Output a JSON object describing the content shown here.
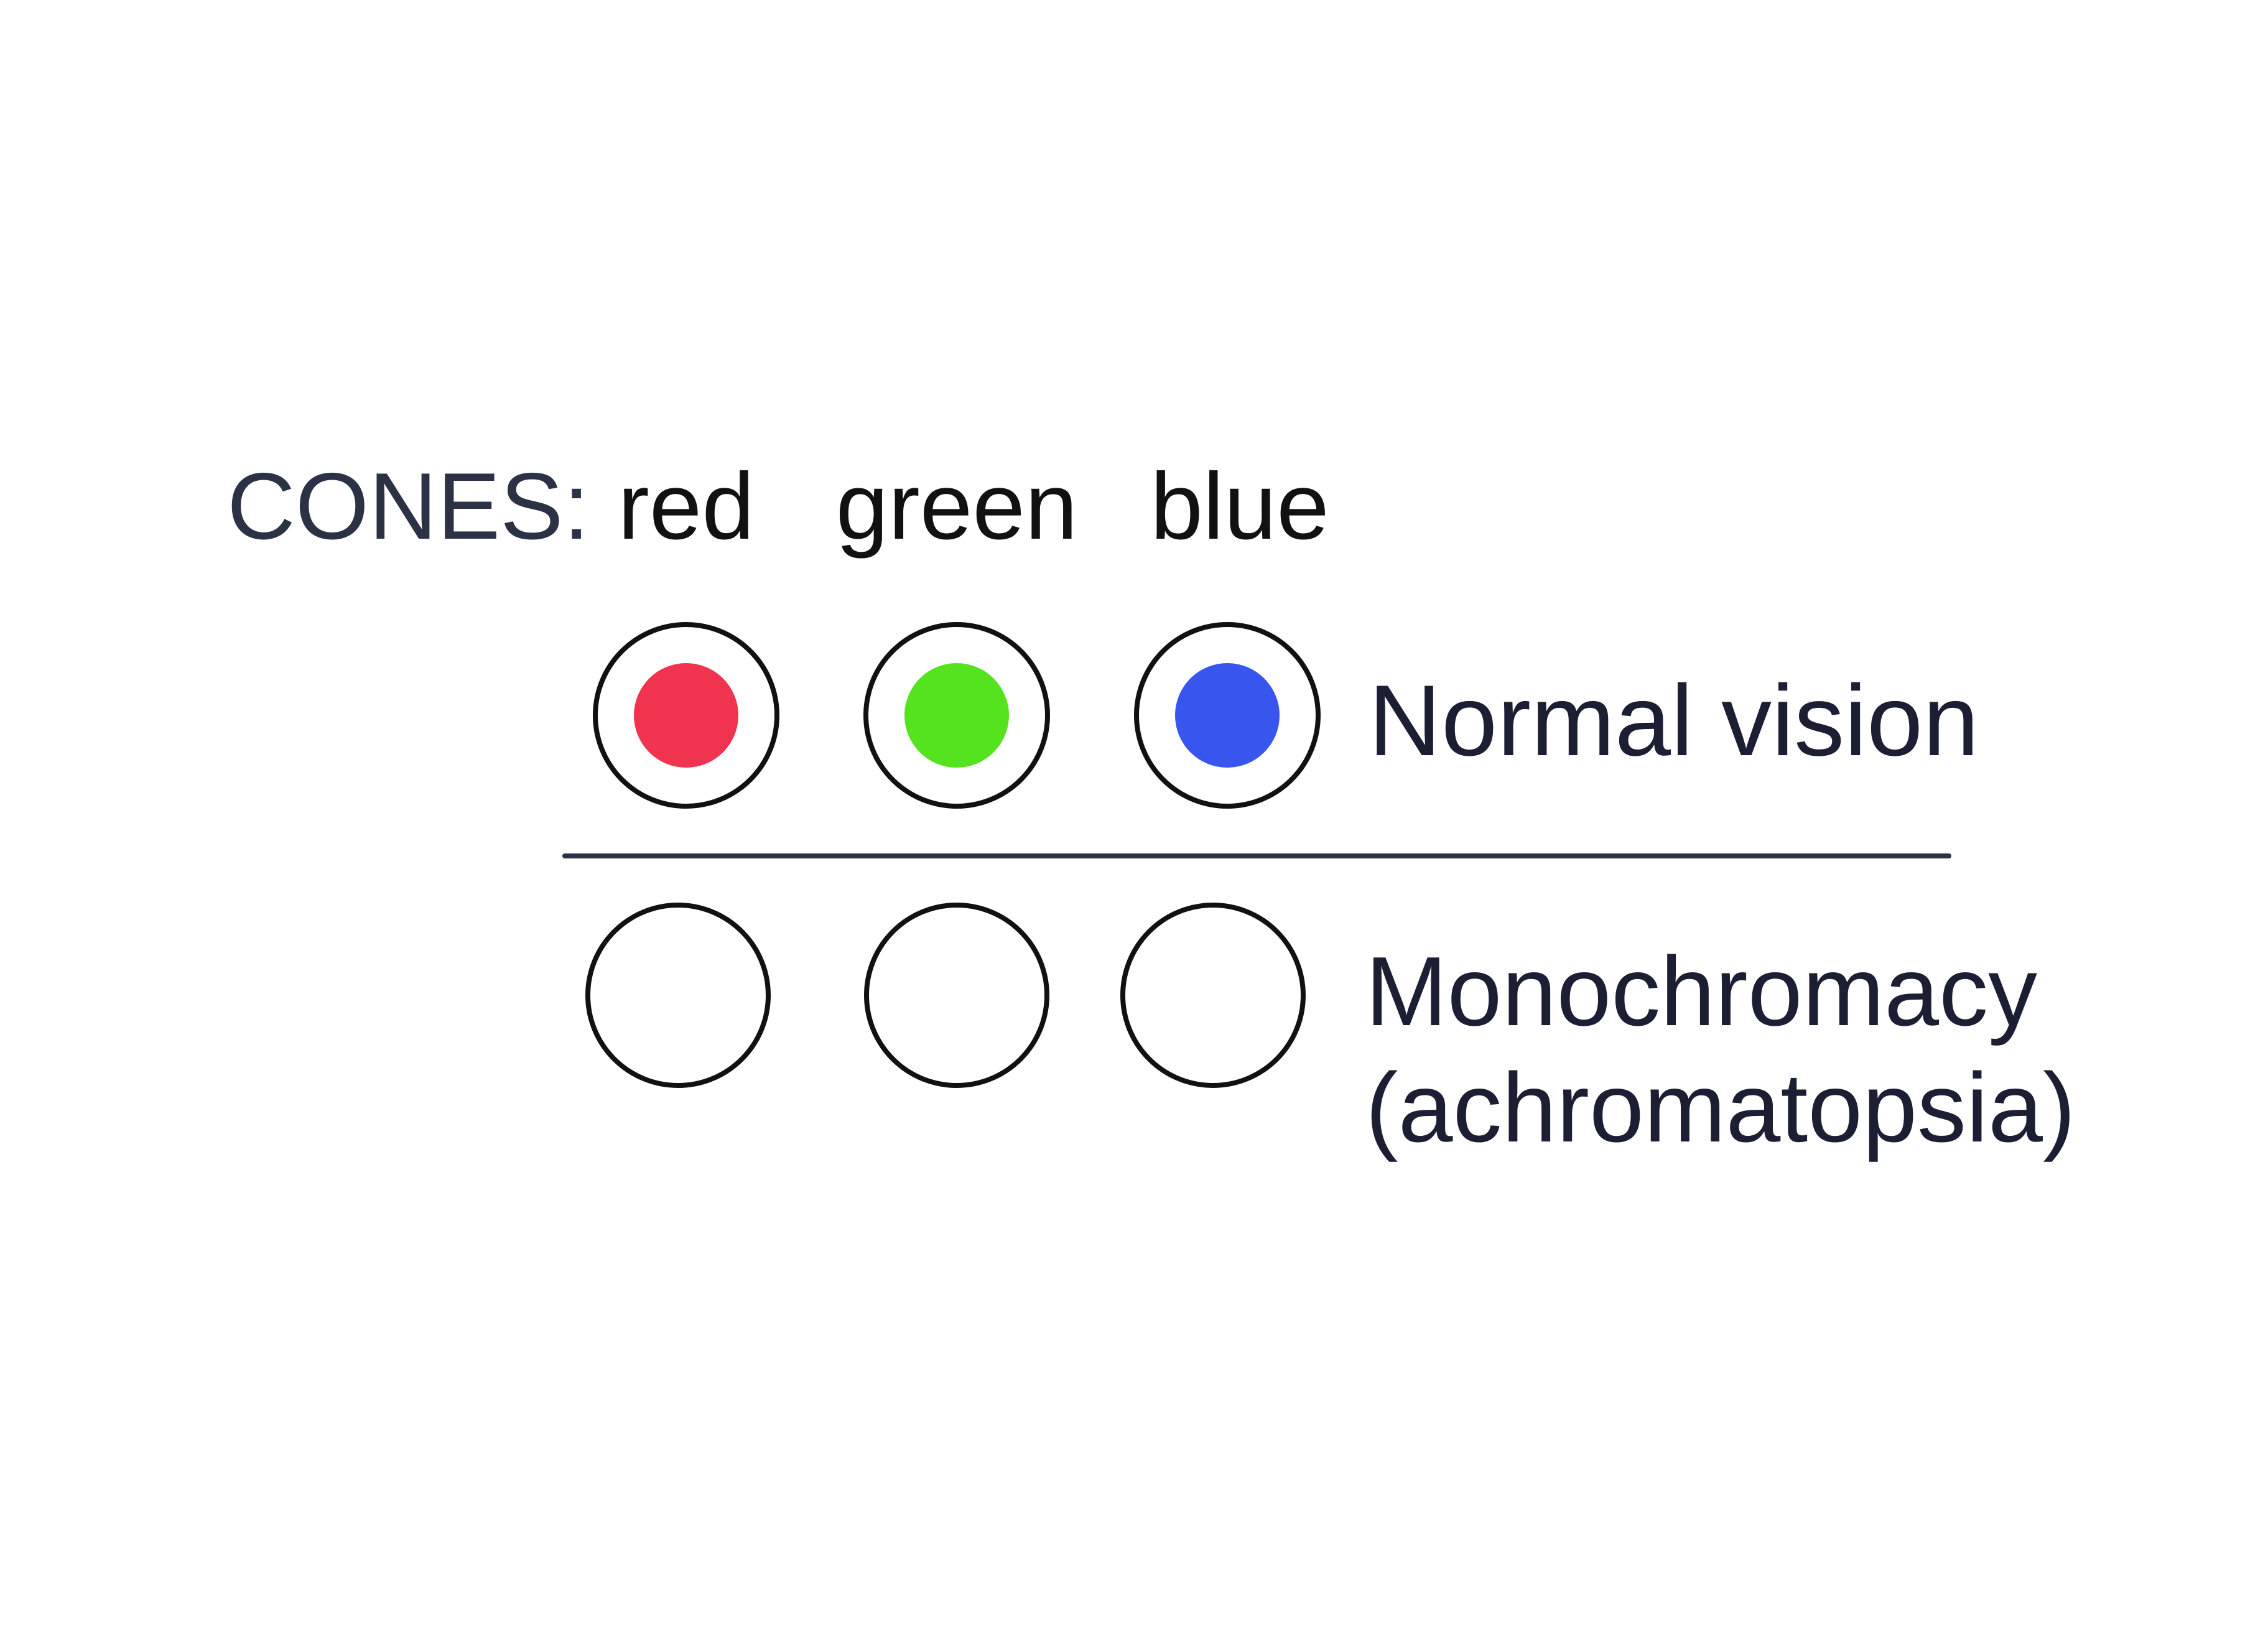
{
  "header": {
    "prefix": "CONES:",
    "cones": [
      "red",
      "green",
      "blue"
    ]
  },
  "rows": [
    {
      "label": [
        "Normal vision"
      ],
      "fills": [
        "#f0344f",
        "#55e21f",
        "#3856ee"
      ]
    },
    {
      "label": [
        "Monochromacy",
        "(achromatopsia)"
      ],
      "fills": [
        null,
        null,
        null
      ]
    }
  ],
  "colors": {
    "text_header": "#2b3245",
    "text_cone": "#111111",
    "text_label": "#1c1e33",
    "outline": "#111111",
    "divider": "#2b3245"
  }
}
